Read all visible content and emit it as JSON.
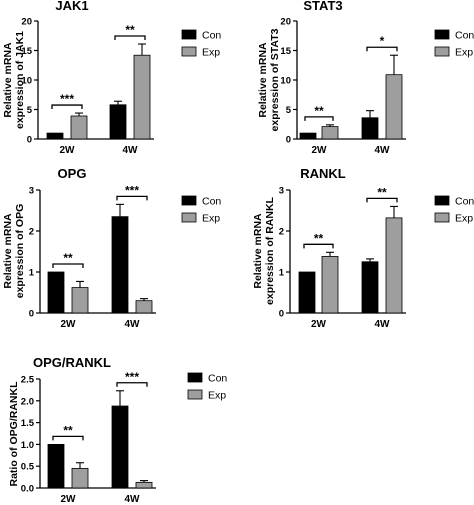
{
  "colors": {
    "con": "#000000",
    "exp": "#9e9e9e",
    "axis": "#000000"
  },
  "chart_data": [
    {
      "type": "bar",
      "title": "JAK1",
      "ylabel": [
        "Relative mRNA",
        "expression of JAK1"
      ],
      "categories": [
        "2W",
        "4W"
      ],
      "ylim": [
        0,
        20
      ],
      "yticks": [
        0,
        5,
        10,
        15,
        20
      ],
      "series": [
        {
          "name": "Con",
          "values": [
            1.0,
            5.8
          ],
          "errors": [
            0.0,
            0.6
          ]
        },
        {
          "name": "Exp",
          "values": [
            3.9,
            14.2
          ],
          "errors": [
            0.5,
            1.9
          ]
        }
      ],
      "significance": [
        "***",
        "**"
      ],
      "legend": "right"
    },
    {
      "type": "bar",
      "title": "STAT3",
      "ylabel": [
        "Relative mRNA",
        "expression of STAT3"
      ],
      "categories": [
        "2W",
        "4W"
      ],
      "ylim": [
        0,
        20
      ],
      "yticks": [
        0,
        5,
        10,
        15,
        20
      ],
      "series": [
        {
          "name": "Con",
          "values": [
            1.0,
            3.6
          ],
          "errors": [
            0.0,
            1.2
          ]
        },
        {
          "name": "Exp",
          "values": [
            2.1,
            10.9
          ],
          "errors": [
            0.3,
            3.3
          ]
        }
      ],
      "significance": [
        "**",
        "*"
      ],
      "legend": "right"
    },
    {
      "type": "bar",
      "title": "OPG",
      "ylabel": [
        "Relative mRNA",
        "expression of OPG"
      ],
      "categories": [
        "2W",
        "4W"
      ],
      "ylim": [
        0,
        3
      ],
      "yticks": [
        0,
        1,
        2,
        3
      ],
      "series": [
        {
          "name": "Con",
          "values": [
            1.0,
            2.35
          ],
          "errors": [
            0.0,
            0.3
          ]
        },
        {
          "name": "Exp",
          "values": [
            0.62,
            0.3
          ],
          "errors": [
            0.15,
            0.05
          ]
        }
      ],
      "significance": [
        "**",
        "***"
      ],
      "legend": "right"
    },
    {
      "type": "bar",
      "title": "RANKL",
      "ylabel": [
        "Relative mRNA",
        "expression of RANKL"
      ],
      "categories": [
        "2W",
        "4W"
      ],
      "ylim": [
        0,
        3
      ],
      "yticks": [
        0,
        1,
        2,
        3
      ],
      "series": [
        {
          "name": "Con",
          "values": [
            1.0,
            1.25
          ],
          "errors": [
            0.0,
            0.07
          ]
        },
        {
          "name": "Exp",
          "values": [
            1.38,
            2.32
          ],
          "errors": [
            0.1,
            0.28
          ]
        }
      ],
      "significance": [
        "**",
        "**"
      ],
      "legend": "right"
    },
    {
      "type": "bar",
      "title": "OPG/RANKL",
      "ylabel": [
        "Ratio of OPG/RANKL"
      ],
      "categories": [
        "2W",
        "4W"
      ],
      "ylim": [
        0,
        2.5
      ],
      "yticks": [
        0.0,
        0.5,
        1.0,
        1.5,
        2.0,
        2.5
      ],
      "series": [
        {
          "name": "Con",
          "values": [
            1.0,
            1.88
          ],
          "errors": [
            0.0,
            0.35
          ]
        },
        {
          "name": "Exp",
          "values": [
            0.45,
            0.13
          ],
          "errors": [
            0.13,
            0.04
          ]
        }
      ],
      "significance": [
        "**",
        "***"
      ],
      "legend": "right"
    }
  ]
}
